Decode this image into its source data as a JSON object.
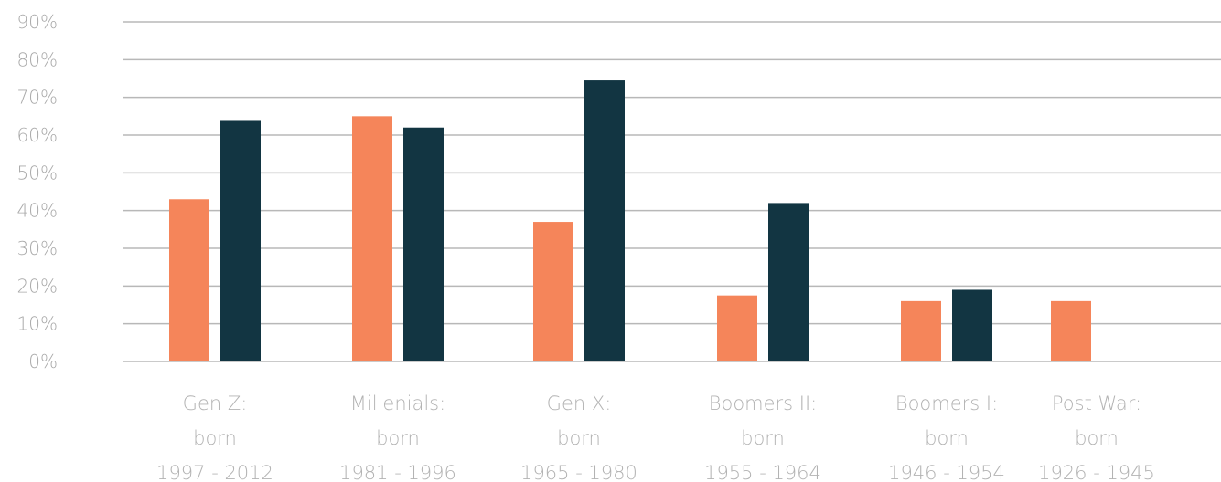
{
  "colors": {
    "series_1": "#f5855a",
    "series_2": "#123542",
    "gridline": "#b8b8b8",
    "axis_text": "#a9a9a9"
  },
  "chart_data": {
    "type": "bar",
    "title": "",
    "xlabel": "",
    "ylabel": "",
    "ylim": [
      0,
      90
    ],
    "yticks": [
      "0%",
      "10%",
      "20%",
      "30%",
      "40%",
      "50%",
      "60%",
      "70%",
      "80%",
      "90%"
    ],
    "grid": true,
    "categories": [
      [
        "Gen Z:",
        "born",
        "1997 - 2012"
      ],
      [
        "Millenials:",
        "born",
        "1981 - 1996"
      ],
      [
        "Gen X:",
        "born",
        "1965 - 1980"
      ],
      [
        "Boomers II:",
        "born",
        "1955 - 1964"
      ],
      [
        "Boomers I:",
        "born",
        "1946 - 1954"
      ],
      [
        "Post War:",
        "born",
        "1926 - 1945"
      ]
    ],
    "series": [
      {
        "values": [
          43,
          65,
          37,
          17.5,
          16,
          16
        ]
      },
      {
        "values": [
          64,
          62,
          74.5,
          42,
          19,
          null
        ]
      }
    ]
  }
}
